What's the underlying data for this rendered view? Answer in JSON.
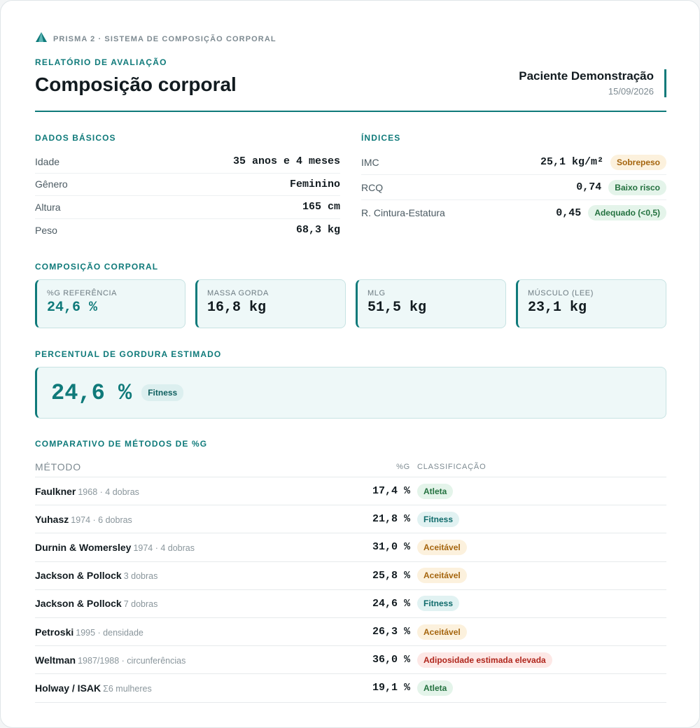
{
  "header": {
    "brand": "PRISMA 2 · SISTEMA DE COMPOSIÇÃO CORPORAL",
    "kicker": "RELATÓRIO DE AVALIAÇÃO",
    "title": "Composição corporal",
    "patient_name": "Paciente Demonstração",
    "date": "15/09/2026"
  },
  "basics": {
    "title": "DADOS BÁSICOS",
    "rows": [
      {
        "label": "Idade",
        "value": "35 anos e 4 meses"
      },
      {
        "label": "Gênero",
        "value": "Feminino"
      },
      {
        "label": "Altura",
        "value": "165 cm"
      },
      {
        "label": "Peso",
        "value": "68,3 kg"
      }
    ]
  },
  "indices": {
    "title": "ÍNDICES",
    "rows": [
      {
        "label": "IMC",
        "value": "25,1 kg/m²",
        "badge": "Sobrepeso"
      },
      {
        "label": "RCQ",
        "value": "0,74",
        "badge": "Baixo risco"
      },
      {
        "label": "R. Cintura-Estatura",
        "value": "0,45",
        "badge": "Adequado (<0,5)"
      }
    ]
  },
  "composition": {
    "title": "COMPOSIÇÃO CORPORAL",
    "tiles": [
      {
        "label": "%G REFERÊNCIA",
        "value": "24,6 %"
      },
      {
        "label": "MASSA GORDA",
        "value": "16,8 kg"
      },
      {
        "label": "MLG",
        "value": "51,5 kg"
      },
      {
        "label": "MÚSCULO (LEE)",
        "value": "23,1 kg"
      }
    ]
  },
  "estimate": {
    "title": "PERCENTUAL DE GORDURA ESTIMADO",
    "value": "24,6 %",
    "badge": "Fitness"
  },
  "comparison": {
    "title": "COMPARATIVO DE MÉTODOS DE %G",
    "col_method": "MÉTODO",
    "col_pct": "%G",
    "col_class": "CLASSIFICAÇÃO",
    "rows": [
      {
        "name": "Faulkner",
        "meta": "1968 · 4 dobras",
        "pct": "17,4 %",
        "class": "Atleta"
      },
      {
        "name": "Yuhasz",
        "meta": "1974 · 6 dobras",
        "pct": "21,8 %",
        "class": "Fitness"
      },
      {
        "name": "Durnin & Womersley",
        "meta": "1974 · 4 dobras",
        "pct": "31,0 %",
        "class": "Aceitável"
      },
      {
        "name": "Jackson & Pollock",
        "meta": "3 dobras",
        "pct": "25,8 %",
        "class": "Aceitável"
      },
      {
        "name": "Jackson & Pollock",
        "meta": "7 dobras",
        "pct": "24,6 %",
        "class": "Fitness"
      },
      {
        "name": "Petroski",
        "meta": "1995 · densidade",
        "pct": "26,3 %",
        "class": "Aceitável"
      },
      {
        "name": "Weltman",
        "meta": "1987/1988 · circunferências",
        "pct": "36,0 %",
        "class": "Adiposidade estimada elevada"
      },
      {
        "name": "Holway / ISAK",
        "meta": "Σ6 mulheres",
        "pct": "19,1 %",
        "class": "Atleta"
      }
    ]
  },
  "colors": {
    "accent": "#0f7a7a",
    "warn": "#a5650e",
    "ok": "#23713f",
    "danger": "#b0261c"
  }
}
